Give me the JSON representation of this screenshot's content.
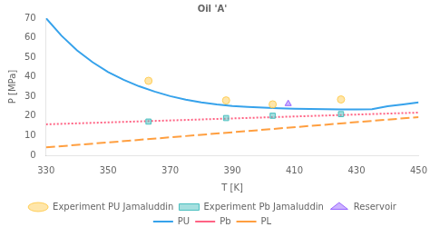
{
  "chart_data": {
    "type": "line",
    "title": "Oil 'A'",
    "xlabel": "T [K]",
    "ylabel": "P [MPa]",
    "xlim": [
      330,
      450
    ],
    "ylim": [
      0,
      70
    ],
    "xticks": [
      330,
      350,
      370,
      390,
      410,
      430,
      450
    ],
    "yticks": [
      0,
      10,
      20,
      30,
      40,
      50,
      60,
      70
    ],
    "grid": false,
    "legend": "bottom",
    "series": [
      {
        "name": "PU",
        "type": "line",
        "line_style": "solid",
        "x": [
          330,
          335,
          340,
          345,
          350,
          355,
          360,
          365,
          370,
          375,
          380,
          385,
          390,
          395,
          400,
          405,
          410,
          415,
          420,
          425,
          430,
          435,
          440,
          445,
          450
        ],
        "values": [
          70.0,
          61.0,
          53.5,
          47.5,
          42.5,
          38.5,
          35.2,
          32.5,
          30.2,
          28.4,
          27.0,
          26.0,
          25.2,
          24.7,
          24.3,
          24.0,
          23.8,
          23.6,
          23.5,
          23.4,
          23.4,
          23.5,
          25.0,
          26.0,
          27.0
        ]
      },
      {
        "name": "Pb",
        "type": "line",
        "line_style": "dotted",
        "x": [
          330,
          450
        ],
        "values": [
          15.8,
          21.8
        ]
      },
      {
        "name": "PL",
        "type": "line",
        "line_style": "dashed",
        "x": [
          330,
          450
        ],
        "values": [
          4.0,
          19.5
        ]
      },
      {
        "name": "Experiment PU Jamaluddin",
        "type": "scatter",
        "marker": "circle",
        "x": [
          363,
          388,
          403,
          425
        ],
        "values": [
          38.0,
          28.0,
          26.0,
          28.5
        ]
      },
      {
        "name": "Experiment Pb Jamaluddin",
        "type": "scatter",
        "marker": "square",
        "x": [
          363,
          388,
          403,
          425
        ],
        "values": [
          17.2,
          19.0,
          20.2,
          21.0
        ]
      },
      {
        "name": "Reservoir",
        "type": "scatter",
        "marker": "triangle",
        "x": [
          408
        ],
        "values": [
          26.3
        ]
      }
    ]
  }
}
